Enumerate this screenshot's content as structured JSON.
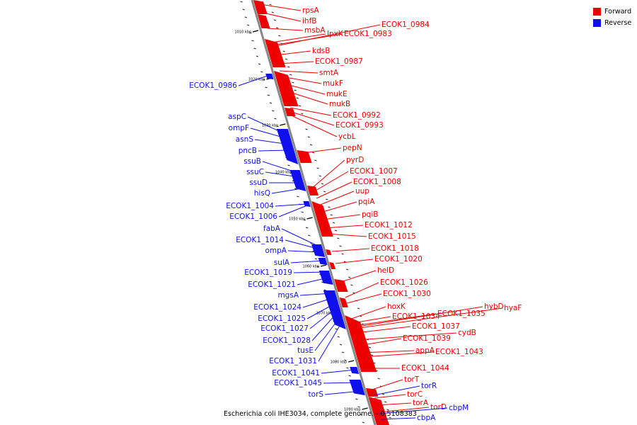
{
  "caption": "Escherichia coli IHE3034, complete genome. - 0.5108383",
  "colors": {
    "forward": "#ee0000",
    "reverse": "#1010ee",
    "backbone": "#888888"
  },
  "legend": [
    {
      "label": "Forward",
      "color": "#ee0000"
    },
    {
      "label": "Reverse",
      "color": "#1010ee"
    }
  ],
  "ticks": [
    "1010 kbp",
    "1020 kbp",
    "1030 kbp",
    "1040 kbp",
    "1050 kbp",
    "1060 kbp",
    "1070 kbp",
    "1080 kbp",
    "1090 kbp"
  ],
  "forward_genes": [
    "rpsA",
    "ihfB",
    "msbA",
    "lpxK",
    "ECOK1_0983",
    "ECOK1_0984",
    "kdsB",
    "ECOK1_0987",
    "smtA",
    "mukF",
    "mukE",
    "mukB",
    "ECOK1_0992",
    "ECOK1_0993",
    "ycbL",
    "pepN",
    "pyrD",
    "ECOK1_1007",
    "ECOK1_1008",
    "uup",
    "pqiA",
    "pqiB",
    "ECOK1_1012",
    "ECOK1_1015",
    "ECOK1_1018",
    "ECOK1_1020",
    "helD",
    "ECOK1_1026",
    "ECOK1_1030",
    "hoxK",
    "ECOK1_1034",
    "ECOK1_1035",
    "hybD",
    "hyaF",
    "ECOK1_1037",
    "cydB",
    "ECOK1_1039",
    "appA",
    "ECOK1_1043",
    "ECOK1_1044",
    "torT",
    "torC",
    "torA",
    "torD"
  ],
  "reverse_genes": [
    "ECOK1_0986",
    "aspC",
    "ompF",
    "asnS",
    "pncB",
    "ssuB",
    "ssuC",
    "ssuD",
    "hisQ",
    "ECOK1_1004",
    "ECOK1_1006",
    "fabA",
    "ECOK1_1014",
    "ompA",
    "sulA",
    "ECOK1_1019",
    "ECOK1_1021",
    "mgsA",
    "ECOK1_1024",
    "ECOK1_1025",
    "ECOK1_1027",
    "ECOK1_1028",
    "tusE",
    "ECOK1_1031",
    "ECOK1_1041",
    "ECOK1_1045",
    "torS",
    "torR",
    "cbpM",
    "cbpA"
  ]
}
